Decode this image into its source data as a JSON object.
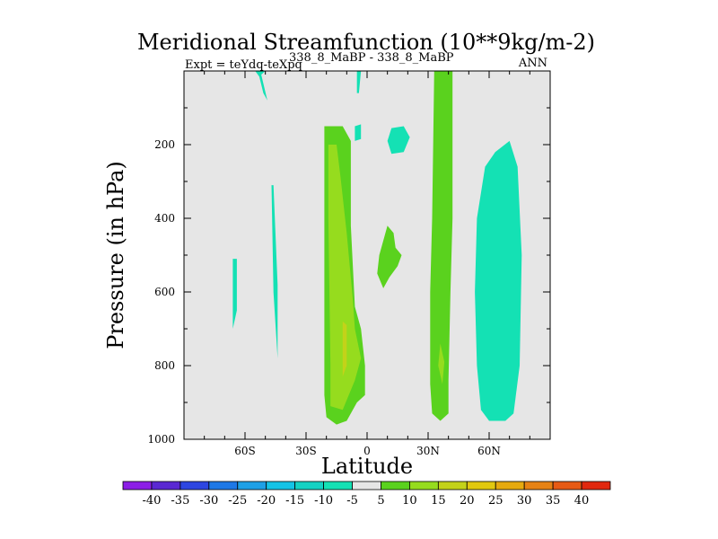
{
  "chart_data": {
    "type": "contour",
    "title": "Meridional Streamfunction (10**9kg/m-2)",
    "subtitle_left_main": "Expt = teYdq-teXpq",
    "subtitle_left_super": "338_8_MaBP - 338_8_MaBP",
    "subtitle_right": "ANN",
    "xlabel": "Latitude",
    "ylabel": "Pressure (in hPa)",
    "x_range": [
      -90,
      90
    ],
    "y_range": [
      1000,
      0
    ],
    "x_ticks": [
      {
        "value": -60,
        "label": "60S"
      },
      {
        "value": -30,
        "label": "30S"
      },
      {
        "value": 0,
        "label": "0"
      },
      {
        "value": 30,
        "label": "30N"
      },
      {
        "value": 60,
        "label": "60N"
      }
    ],
    "y_ticks": [
      {
        "value": 200,
        "label": "200"
      },
      {
        "value": 400,
        "label": "400"
      },
      {
        "value": 600,
        "label": "600"
      },
      {
        "value": 800,
        "label": "800"
      },
      {
        "value": 1000,
        "label": "1000"
      }
    ],
    "colorbar": {
      "colors": [
        "#8c1ee6",
        "#5a28d2",
        "#2d46e1",
        "#1e78e6",
        "#1ea0e6",
        "#14c3e6",
        "#14d2c3",
        "#14e1b4",
        "#e6e6e6",
        "#5ad21e",
        "#96dc1e",
        "#c3d219",
        "#e1c80f",
        "#e6aa0f",
        "#e68214",
        "#e65a14",
        "#e1280f"
      ],
      "labels": [
        "-40",
        "-35",
        "-30",
        "-25",
        "-20",
        "-15",
        "-10",
        "-5",
        "5",
        "10",
        "15",
        "20",
        "25",
        "30",
        "35",
        "40"
      ]
    },
    "background_color": "#e6e6e6",
    "regions": [
      {
        "name": "teal-top-left",
        "level": -5,
        "color": "#14e1b4",
        "pts": [
          [
            -52,
            10
          ],
          [
            -50,
            0
          ],
          [
            -55,
            0
          ],
          [
            -53,
            15
          ],
          [
            -51,
            60
          ],
          [
            -49,
            80
          ]
        ]
      },
      {
        "name": "teal-top-center",
        "level": -5,
        "color": "#14e1b4",
        "pts": [
          [
            -5,
            0
          ],
          [
            -3,
            0
          ],
          [
            -4,
            60
          ],
          [
            -5,
            60
          ]
        ]
      },
      {
        "name": "teal-upper-center-small",
        "level": -5,
        "color": "#14e1b4",
        "pts": [
          [
            -6,
            150
          ],
          [
            -3,
            145
          ],
          [
            -3,
            185
          ],
          [
            -6,
            190
          ]
        ]
      },
      {
        "name": "teal-upper-right-small",
        "level": -5,
        "color": "#14e1b4",
        "pts": [
          [
            12,
            155
          ],
          [
            18,
            150
          ],
          [
            21,
            180
          ],
          [
            18,
            220
          ],
          [
            12,
            225
          ],
          [
            10,
            190
          ]
        ]
      },
      {
        "name": "teal-left-thin",
        "level": -5,
        "color": "#14e1b4",
        "pts": [
          [
            -47,
            310
          ],
          [
            -46,
            310
          ],
          [
            -44,
            580
          ],
          [
            -44,
            780
          ],
          [
            -46,
            600
          ]
        ]
      },
      {
        "name": "teal-far-left-thin",
        "level": -5,
        "color": "#14e1b4",
        "pts": [
          [
            -66,
            510
          ],
          [
            -64,
            510
          ],
          [
            -64,
            650
          ],
          [
            -66,
            700
          ]
        ]
      },
      {
        "name": "teal-right-large",
        "level": -5,
        "color": "#14e1b4",
        "pts": [
          [
            58,
            260
          ],
          [
            63,
            220
          ],
          [
            70,
            190
          ],
          [
            74,
            260
          ],
          [
            76,
            500
          ],
          [
            75,
            800
          ],
          [
            72,
            930
          ],
          [
            68,
            950
          ],
          [
            60,
            950
          ],
          [
            56,
            920
          ],
          [
            54,
            800
          ],
          [
            53,
            600
          ],
          [
            54,
            400
          ]
        ]
      },
      {
        "name": "green-left-band",
        "level": 5,
        "color": "#5ad21e",
        "pts": [
          [
            -21,
            150
          ],
          [
            -12,
            150
          ],
          [
            -8,
            190
          ],
          [
            -8,
            420
          ],
          [
            -6,
            640
          ],
          [
            -3,
            700
          ],
          [
            -1,
            800
          ],
          [
            -1,
            880
          ],
          [
            -5,
            900
          ],
          [
            -10,
            950
          ],
          [
            -15,
            960
          ],
          [
            -20,
            940
          ],
          [
            -21,
            880
          ],
          [
            -21,
            400
          ]
        ]
      },
      {
        "name": "green-right-band",
        "level": 5,
        "color": "#5ad21e",
        "pts": [
          [
            33,
            0
          ],
          [
            42,
            0
          ],
          [
            42,
            400
          ],
          [
            41,
            600
          ],
          [
            40,
            840
          ],
          [
            40,
            930
          ],
          [
            36,
            950
          ],
          [
            32,
            930
          ],
          [
            31,
            850
          ],
          [
            31,
            600
          ],
          [
            32,
            400
          ]
        ]
      },
      {
        "name": "green-center-blob",
        "level": 5,
        "color": "#5ad21e",
        "pts": [
          [
            10,
            420
          ],
          [
            13,
            440
          ],
          [
            14,
            480
          ],
          [
            17,
            500
          ],
          [
            15,
            530
          ],
          [
            11,
            560
          ],
          [
            8,
            590
          ],
          [
            5,
            550
          ],
          [
            6,
            500
          ]
        ]
      },
      {
        "name": "yellowgreen-left-core",
        "level": 10,
        "color": "#96dc1e",
        "pts": [
          [
            -19,
            200
          ],
          [
            -15,
            200
          ],
          [
            -13,
            290
          ],
          [
            -10,
            440
          ],
          [
            -7,
            620
          ],
          [
            -6,
            700
          ],
          [
            -3,
            780
          ],
          [
            -6,
            840
          ],
          [
            -12,
            920
          ],
          [
            -18,
            910
          ],
          [
            -18,
            800
          ],
          [
            -19,
            400
          ]
        ]
      },
      {
        "name": "yellowgreen-right-core",
        "level": 10,
        "color": "#96dc1e",
        "pts": [
          [
            36,
            740
          ],
          [
            38,
            790
          ],
          [
            37,
            850
          ],
          [
            35,
            800
          ]
        ]
      },
      {
        "name": "olive-left-core",
        "level": 15,
        "color": "#c3d219",
        "pts": [
          [
            -12,
            680
          ],
          [
            -10,
            690
          ],
          [
            -10,
            800
          ],
          [
            -12,
            830
          ]
        ]
      }
    ]
  }
}
